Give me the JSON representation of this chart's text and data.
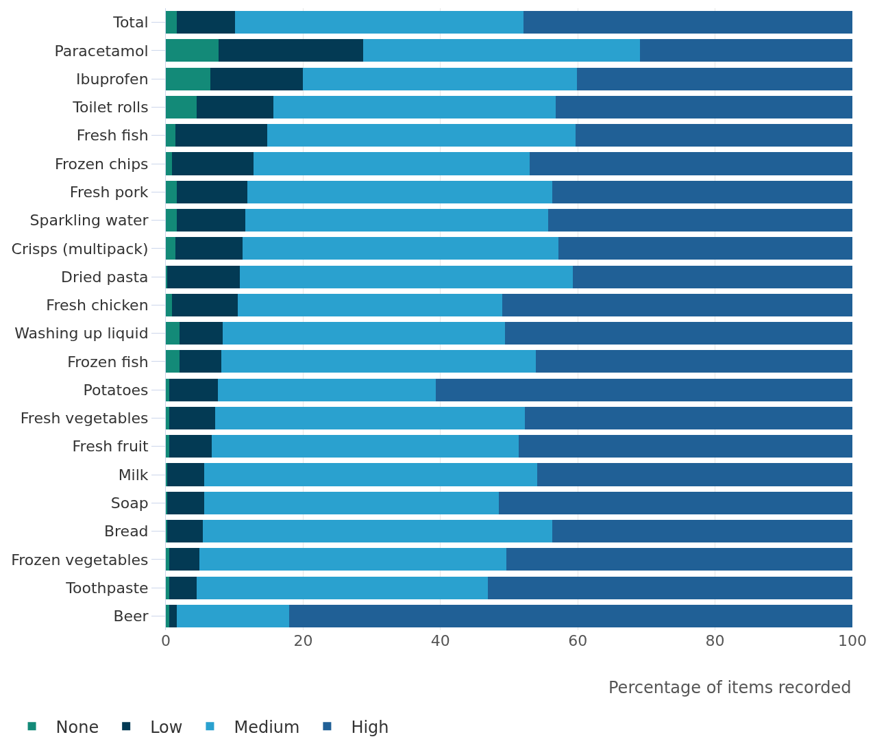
{
  "chart_data": {
    "type": "bar",
    "orientation": "horizontal",
    "stacked": true,
    "xlabel": "Percentage of items recorded",
    "categories": [
      "Total",
      "Paracetamol",
      "Ibuprofen",
      "Toilet rolls",
      "Fresh fish",
      "Frozen chips",
      "Fresh pork",
      "Sparkling water",
      "Crisps (multipack)",
      "Dried pasta",
      "Fresh chicken",
      "Washing up liquid",
      "Frozen fish",
      "Potatoes",
      "Fresh vegetables",
      "Fresh fruit",
      "Milk",
      "Soap",
      "Bread",
      "Frozen vegetables",
      "Toothpaste",
      "Beer"
    ],
    "series": [
      {
        "name": "None",
        "color": "#138a78",
        "values": [
          1.6,
          7.7,
          6.5,
          4.5,
          1.4,
          0.9,
          1.6,
          1.6,
          1.4,
          0.2,
          0.9,
          2.0,
          2.0,
          0.5,
          0.5,
          0.5,
          0.2,
          0.2,
          0.2,
          0.5,
          0.5,
          0.5
        ]
      },
      {
        "name": "Low",
        "color": "#033a54",
        "values": [
          8.5,
          21.0,
          13.5,
          11.2,
          13.4,
          11.9,
          10.3,
          10.0,
          9.8,
          10.6,
          9.6,
          6.3,
          6.1,
          7.1,
          6.7,
          6.2,
          5.4,
          5.4,
          5.2,
          4.4,
          4.0,
          1.1
        ]
      },
      {
        "name": "Medium",
        "color": "#2aa1cf",
        "values": [
          42.0,
          40.4,
          39.9,
          41.1,
          44.9,
          40.2,
          44.4,
          44.1,
          46.0,
          48.5,
          38.5,
          41.1,
          45.8,
          31.7,
          45.1,
          44.7,
          48.5,
          42.9,
          50.9,
          44.7,
          42.4,
          16.4
        ]
      },
      {
        "name": "High",
        "color": "#206096",
        "values": [
          47.9,
          30.9,
          40.1,
          43.2,
          40.3,
          47.0,
          43.7,
          44.3,
          42.8,
          40.7,
          51.0,
          50.6,
          46.1,
          60.7,
          47.7,
          48.6,
          45.9,
          51.5,
          43.7,
          50.4,
          53.1,
          82.0
        ]
      }
    ],
    "xlim": [
      0,
      100
    ],
    "xticks": [
      0,
      20,
      40,
      60,
      80,
      100
    ],
    "grid": "x",
    "legend": "bottom left"
  }
}
